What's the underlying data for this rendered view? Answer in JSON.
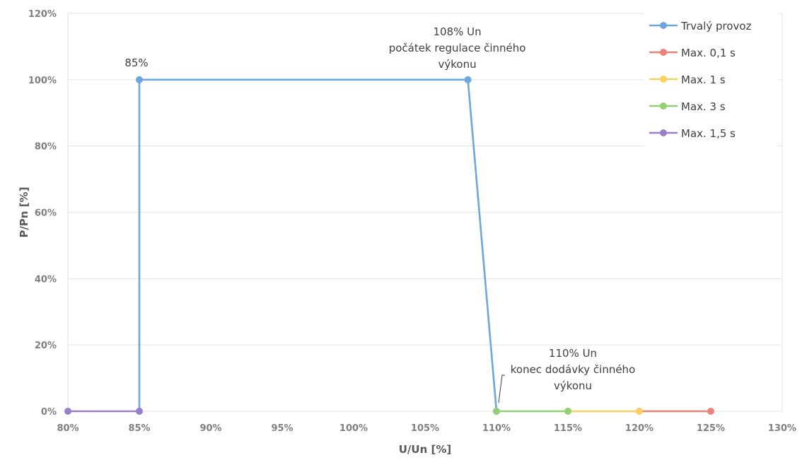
{
  "chart_data": {
    "type": "line",
    "xlabel": "U/Un [%]",
    "ylabel": "P/Pn [%]",
    "xlim": [
      80,
      130
    ],
    "ylim": [
      0,
      120
    ],
    "x_ticks": [
      80,
      85,
      90,
      95,
      100,
      105,
      110,
      115,
      120,
      125,
      130
    ],
    "x_tick_labels": [
      "80%",
      "85%",
      "90%",
      "95%",
      "100%",
      "105%",
      "110%",
      "115%",
      "120%",
      "125%",
      "130%"
    ],
    "y_ticks": [
      0,
      20,
      40,
      60,
      80,
      100,
      120
    ],
    "y_tick_labels": [
      "0%",
      "20%",
      "40%",
      "60%",
      "80%",
      "100%",
      "120%"
    ],
    "grid": true,
    "legend_position": "top-right",
    "series": [
      {
        "name": "Trvalý provoz",
        "color": "#6fa6dc",
        "points": [
          [
            85,
            0
          ],
          [
            85,
            100
          ],
          [
            108,
            100
          ],
          [
            110,
            0
          ]
        ]
      },
      {
        "name": "Max. 0,1 s",
        "color": "#ee8078",
        "points": [
          [
            120,
            0
          ],
          [
            125,
            0
          ]
        ]
      },
      {
        "name": "Max. 1 s",
        "color": "#fbcf63",
        "points": [
          [
            115,
            0
          ],
          [
            120,
            0
          ]
        ]
      },
      {
        "name": "Max. 3 s",
        "color": "#94cf76",
        "points": [
          [
            110,
            0
          ],
          [
            115,
            0
          ]
        ]
      },
      {
        "name": "Max. 1,5 s",
        "color": "#9a80c8",
        "points": [
          [
            80,
            0
          ],
          [
            85,
            0
          ]
        ]
      }
    ],
    "annotations": [
      {
        "id": "85",
        "lines": [
          "85%"
        ],
        "x": 85,
        "y": 100
      },
      {
        "id": "108",
        "lines": [
          "108% Un",
          "počátek regulace činného",
          "výkonu"
        ],
        "x": 108,
        "y": 100
      },
      {
        "id": "110",
        "lines": [
          "110% Un",
          "konec dodávky činného",
          "výkonu"
        ],
        "x": 110,
        "y": 0
      }
    ]
  }
}
